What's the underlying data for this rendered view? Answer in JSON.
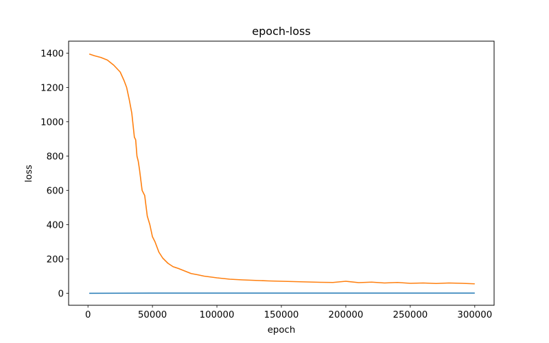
{
  "chart_data": {
    "type": "line",
    "title": "epoch-loss",
    "xlabel": "epoch",
    "ylabel": "loss",
    "xlim": [
      -15000,
      315000
    ],
    "ylim": [
      -70,
      1470
    ],
    "xticks": [
      0,
      50000,
      100000,
      150000,
      200000,
      250000,
      300000
    ],
    "yticks": [
      0,
      200,
      400,
      600,
      800,
      1000,
      1200,
      1400
    ],
    "grid": false,
    "series": [
      {
        "color": "#1f77b4",
        "x": [
          1000,
          50000,
          100000,
          150000,
          200000,
          250000,
          300000
        ],
        "y": [
          0,
          1,
          1,
          1,
          1,
          1,
          1
        ]
      },
      {
        "color": "#ff7f0e",
        "x": [
          1000,
          5000,
          10000,
          15000,
          20000,
          25000,
          28000,
          30000,
          32000,
          34000,
          35000,
          36000,
          37000,
          38000,
          39000,
          40000,
          42000,
          44000,
          46000,
          48000,
          50000,
          52000,
          55000,
          58000,
          62000,
          66000,
          70000,
          75000,
          80000,
          85000,
          90000,
          95000,
          100000,
          110000,
          120000,
          130000,
          140000,
          150000,
          160000,
          170000,
          180000,
          190000,
          200000,
          210000,
          220000,
          230000,
          240000,
          250000,
          260000,
          270000,
          280000,
          290000,
          300000
        ],
        "y": [
          1395,
          1385,
          1375,
          1360,
          1330,
          1290,
          1240,
          1200,
          1130,
          1050,
          980,
          910,
          895,
          800,
          770,
          720,
          600,
          570,
          450,
          400,
          330,
          300,
          240,
          205,
          175,
          155,
          145,
          130,
          115,
          108,
          100,
          95,
          90,
          82,
          78,
          75,
          72,
          70,
          68,
          66,
          64,
          63,
          70,
          62,
          65,
          60,
          63,
          58,
          60,
          57,
          60,
          58,
          55
        ]
      }
    ]
  }
}
